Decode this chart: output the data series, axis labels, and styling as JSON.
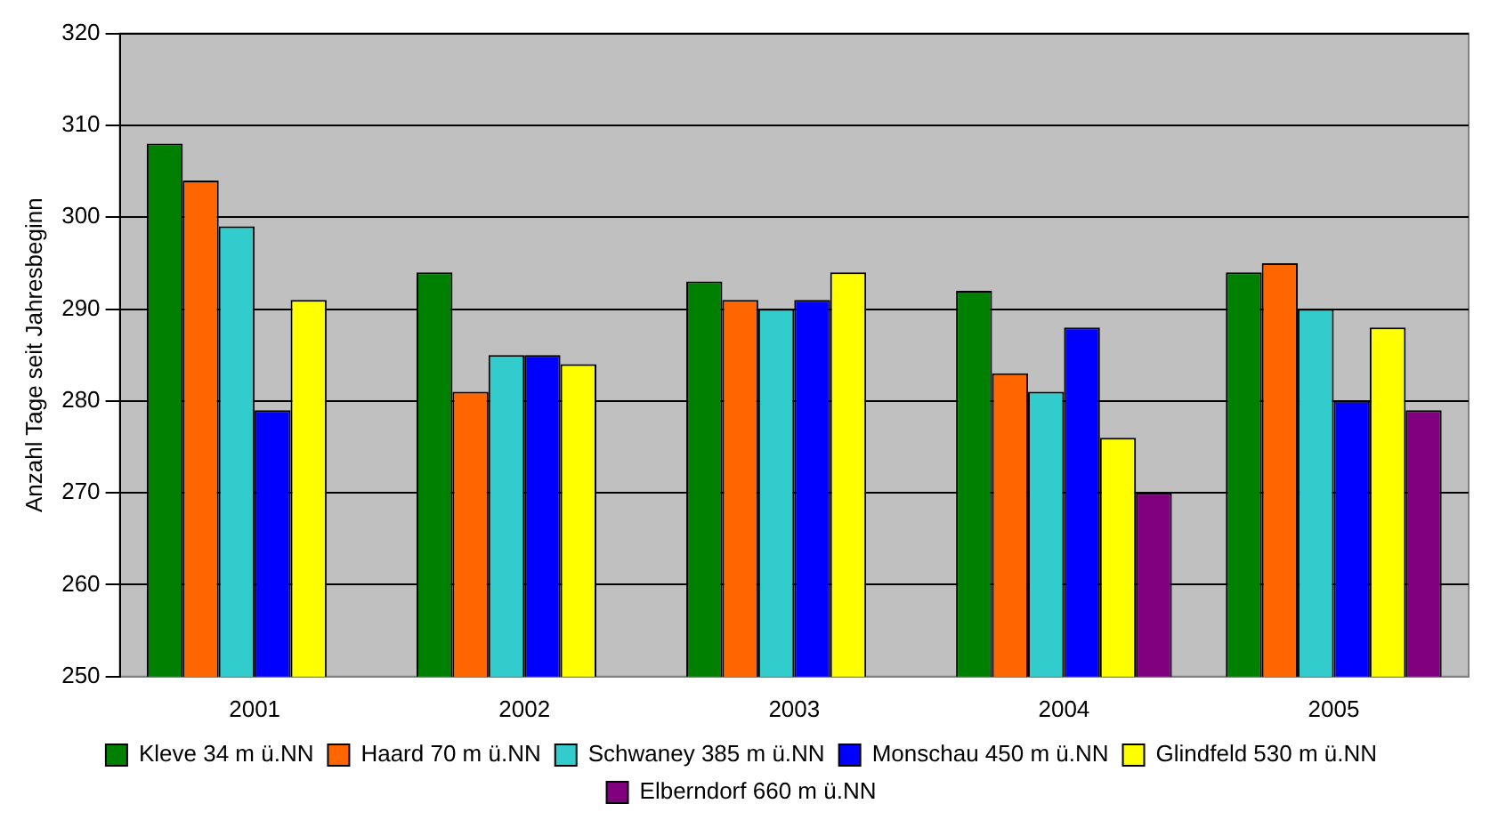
{
  "chart_data": {
    "type": "bar",
    "ylabel": "Anzahl Tage seit Jahresbeginn",
    "categories": [
      "2001",
      "2002",
      "2003",
      "2004",
      "2005"
    ],
    "series": [
      {
        "name": "Kleve 34 m ü.NN",
        "color": "#008000",
        "values": [
          308,
          294,
          293,
          292,
          294
        ]
      },
      {
        "name": "Haard 70 m ü.NN",
        "color": "#ff6600",
        "values": [
          304,
          281,
          291,
          283,
          295
        ]
      },
      {
        "name": "Schwaney 385 m ü.NN",
        "color": "#33cccc",
        "values": [
          299,
          285,
          290,
          281,
          290
        ]
      },
      {
        "name": "Monschau 450 m ü.NN",
        "color": "#0000ff",
        "values": [
          279,
          285,
          291,
          288,
          280
        ]
      },
      {
        "name": "Glindfeld 530 m ü.NN",
        "color": "#ffff00",
        "values": [
          291,
          284,
          294,
          276,
          288
        ]
      },
      {
        "name": "Elberndorf 660 m ü.NN",
        "color": "#800080",
        "values": [
          null,
          null,
          null,
          270,
          279
        ]
      }
    ],
    "ylim": [
      250,
      320
    ],
    "yticks": [
      250,
      260,
      270,
      280,
      290,
      300,
      310,
      320
    ],
    "grid": "y",
    "legend": "bottom"
  }
}
